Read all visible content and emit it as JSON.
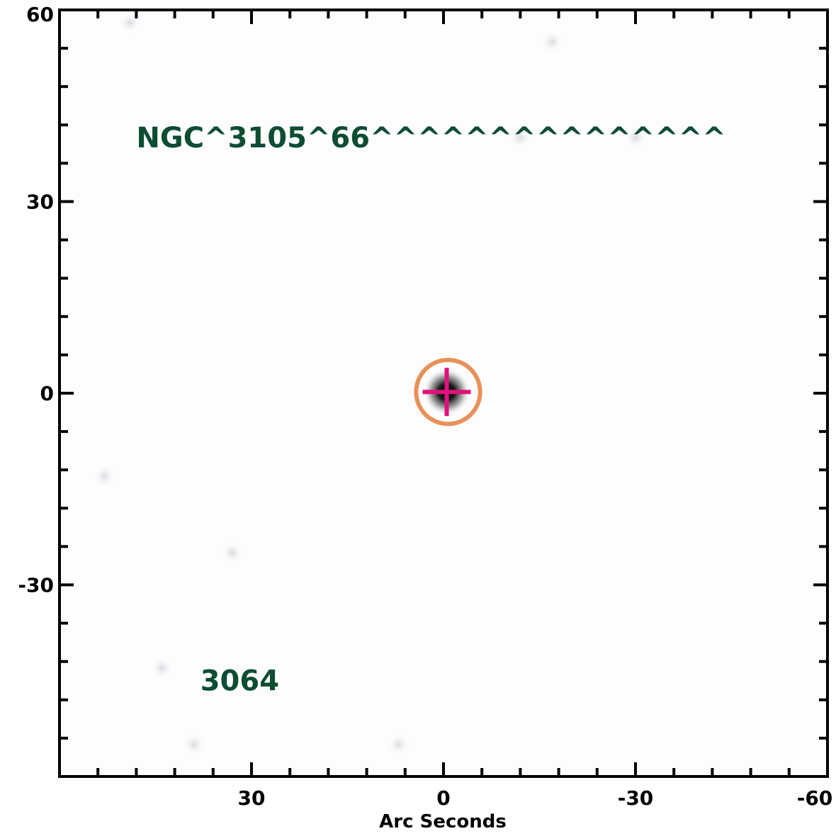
{
  "chart_data": {
    "type": "scatter",
    "title": "",
    "xlabel": "Arc Seconds",
    "ylabel": "",
    "xlim": [
      60,
      -60
    ],
    "ylim": [
      -60,
      60
    ],
    "x_ticks": [
      {
        "value": 30,
        "label": "30"
      },
      {
        "value": 0,
        "label": "0"
      },
      {
        "value": -30,
        "label": "-30"
      },
      {
        "value": -60,
        "label": "-60"
      }
    ],
    "y_ticks": [
      {
        "value": 60,
        "label": "60"
      },
      {
        "value": 30,
        "label": "30"
      },
      {
        "value": 0,
        "label": "0"
      },
      {
        "value": -30,
        "label": "-30"
      }
    ],
    "minor_tick_step": 6,
    "grid": false,
    "source_marker": {
      "x": -0.5,
      "y": 0.2,
      "circle_radius": 5
    },
    "faint_sources": [
      {
        "x": 49,
        "y": 58
      },
      {
        "x": -17,
        "y": 55
      },
      {
        "x": -30,
        "y": 40
      },
      {
        "x": -12,
        "y": 40
      },
      {
        "x": 53,
        "y": -13
      },
      {
        "x": 44,
        "y": -43
      },
      {
        "x": 39,
        "y": -55
      },
      {
        "x": 7,
        "y": -55
      },
      {
        "x": 33,
        "y": -25
      }
    ],
    "annotations": [
      {
        "text": "NGC^3105^66^^^^^^^^^^^^^^^",
        "x": 48,
        "y": 38.5
      },
      {
        "text": "3064",
        "x": 38,
        "y": -46.5
      }
    ],
    "colors": {
      "annotation": "#0d4d33",
      "circle": "#e8915a",
      "cross": "#e0117a",
      "source_core": "#000000",
      "axes": "#000000"
    }
  }
}
